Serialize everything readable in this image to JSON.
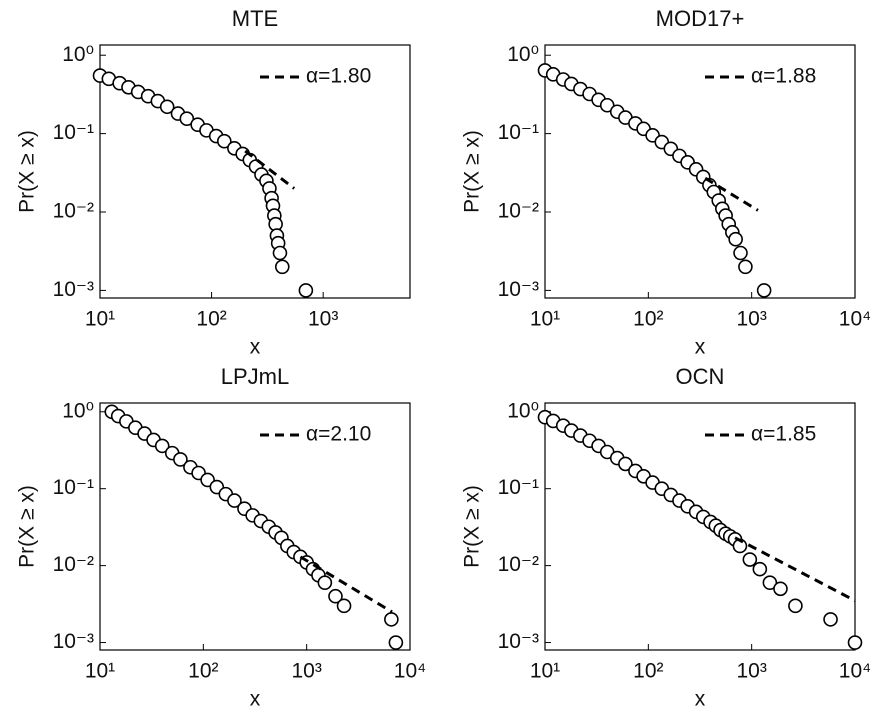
{
  "chart_data": [
    {
      "type": "scatter",
      "title": "MTE",
      "xlabel": "x",
      "ylabel": "Pr(X ≥ x)",
      "xscale": "log",
      "yscale": "log",
      "legend": "upper right",
      "color": "#000000",
      "x": [
        10,
        12,
        15,
        18,
        22,
        27,
        33,
        40,
        50,
        60,
        75,
        90,
        110,
        130,
        160,
        190,
        220,
        250,
        280,
        310,
        330,
        345,
        355,
        365,
        375,
        385,
        395,
        410,
        430,
        700
      ],
      "values": [
        0.55,
        0.5,
        0.44,
        0.39,
        0.34,
        0.3,
        0.26,
        0.22,
        0.18,
        0.155,
        0.13,
        0.11,
        0.093,
        0.08,
        0.065,
        0.055,
        0.046,
        0.038,
        0.03,
        0.025,
        0.02,
        0.015,
        0.012,
        0.009,
        0.007,
        0.005,
        0.004,
        0.003,
        0.002,
        0.001
      ],
      "fit": {
        "name": "α=1.80",
        "x": [
          200,
          550
        ],
        "values": [
          0.06,
          0.02
        ]
      },
      "xlim": [
        10,
        6000
      ],
      "ylim": [
        0.0008,
        1.35
      ],
      "xticks": [
        {
          "value": 10,
          "label": "10¹"
        },
        {
          "value": 100,
          "label": "10²"
        },
        {
          "value": 1000,
          "label": "10³"
        }
      ],
      "yticks": [
        {
          "value": 1,
          "label": "10⁰"
        },
        {
          "value": 0.1,
          "label": "10⁻¹"
        },
        {
          "value": 0.01,
          "label": "10⁻²"
        },
        {
          "value": 0.001,
          "label": "10⁻³"
        }
      ]
    },
    {
      "type": "scatter",
      "title": "MOD17+",
      "xlabel": "x",
      "ylabel": "Pr(X ≥ x)",
      "xscale": "log",
      "yscale": "log",
      "legend": "upper right",
      "color": "#000000",
      "x": [
        10,
        12,
        15,
        18,
        22,
        27,
        33,
        40,
        50,
        60,
        75,
        90,
        110,
        135,
        165,
        200,
        240,
        290,
        340,
        390,
        430,
        480,
        520,
        560,
        600,
        650,
        700,
        780,
        870,
        1320
      ],
      "values": [
        0.64,
        0.57,
        0.49,
        0.43,
        0.37,
        0.32,
        0.27,
        0.23,
        0.19,
        0.16,
        0.135,
        0.115,
        0.095,
        0.078,
        0.064,
        0.052,
        0.043,
        0.035,
        0.028,
        0.022,
        0.018,
        0.014,
        0.011,
        0.009,
        0.007,
        0.0055,
        0.0045,
        0.003,
        0.002,
        0.001
      ],
      "fit": {
        "name": "α=1.88",
        "x": [
          355,
          1150
        ],
        "values": [
          0.027,
          0.0105
        ]
      },
      "xlim": [
        10,
        10000
      ],
      "ylim": [
        0.0008,
        1.35
      ],
      "xticks": [
        {
          "value": 10,
          "label": "10¹"
        },
        {
          "value": 100,
          "label": "10²"
        },
        {
          "value": 1000,
          "label": "10³"
        },
        {
          "value": 10000,
          "label": "10⁴"
        }
      ],
      "yticks": [
        {
          "value": 1,
          "label": "10⁰"
        },
        {
          "value": 0.1,
          "label": "10⁻¹"
        },
        {
          "value": 0.01,
          "label": "10⁻²"
        },
        {
          "value": 0.001,
          "label": "10⁻³"
        }
      ]
    },
    {
      "type": "scatter",
      "title": "LPJmL",
      "xlabel": "x",
      "ylabel": "Pr(X ≥ x)",
      "xscale": "log",
      "yscale": "log",
      "legend": "upper right",
      "color": "#000000",
      "x": [
        13,
        15,
        18,
        22,
        27,
        33,
        40,
        50,
        60,
        75,
        90,
        110,
        135,
        165,
        200,
        250,
        300,
        360,
        430,
        500,
        570,
        650,
        750,
        870,
        1000,
        1150,
        1300,
        1500,
        1900,
        2300,
        6600,
        7300
      ],
      "values": [
        1.0,
        0.88,
        0.75,
        0.62,
        0.52,
        0.43,
        0.36,
        0.29,
        0.24,
        0.19,
        0.16,
        0.13,
        0.105,
        0.085,
        0.07,
        0.055,
        0.045,
        0.038,
        0.032,
        0.027,
        0.023,
        0.018,
        0.015,
        0.013,
        0.011,
        0.009,
        0.0075,
        0.006,
        0.004,
        0.003,
        0.002,
        0.001
      ],
      "fit": {
        "name": "α=2.10",
        "x": [
          870,
          6700
        ],
        "values": [
          0.013,
          0.0025
        ]
      },
      "xlim": [
        10,
        10000
      ],
      "ylim": [
        0.0008,
        1.3
      ],
      "xticks": [
        {
          "value": 10,
          "label": "10¹"
        },
        {
          "value": 100,
          "label": "10²"
        },
        {
          "value": 1000,
          "label": "10³"
        },
        {
          "value": 10000,
          "label": "10⁴"
        }
      ],
      "yticks": [
        {
          "value": 1,
          "label": "10⁰"
        },
        {
          "value": 0.1,
          "label": "10⁻¹"
        },
        {
          "value": 0.01,
          "label": "10⁻²"
        },
        {
          "value": 0.001,
          "label": "10⁻³"
        }
      ]
    },
    {
      "type": "scatter",
      "title": "OCN",
      "xlabel": "x",
      "ylabel": "Pr(X ≥ x)",
      "xscale": "log",
      "yscale": "log",
      "legend": "upper right",
      "color": "#000000",
      "x": [
        10,
        12,
        15,
        18,
        22,
        27,
        33,
        40,
        50,
        60,
        75,
        90,
        110,
        135,
        165,
        200,
        240,
        290,
        340,
        400,
        450,
        500,
        560,
        620,
        690,
        770,
        960,
        1200,
        1500,
        1900,
        2650,
        5800,
        10000
      ],
      "values": [
        0.85,
        0.76,
        0.66,
        0.57,
        0.49,
        0.42,
        0.36,
        0.3,
        0.25,
        0.21,
        0.17,
        0.145,
        0.12,
        0.1,
        0.083,
        0.07,
        0.059,
        0.05,
        0.043,
        0.037,
        0.033,
        0.029,
        0.026,
        0.024,
        0.022,
        0.018,
        0.012,
        0.009,
        0.006,
        0.005,
        0.003,
        0.002,
        0.001
      ],
      "fit": {
        "name": "α=1.85",
        "x": [
          690,
          10000
        ],
        "values": [
          0.023,
          0.0035
        ]
      },
      "xlim": [
        10,
        10000
      ],
      "ylim": [
        0.0008,
        1.3
      ],
      "xticks": [
        {
          "value": 10,
          "label": "10¹"
        },
        {
          "value": 100,
          "label": "10²"
        },
        {
          "value": 1000,
          "label": "10³"
        },
        {
          "value": 10000,
          "label": "10⁴"
        }
      ],
      "yticks": [
        {
          "value": 1,
          "label": "10⁰"
        },
        {
          "value": 0.1,
          "label": "10⁻¹"
        },
        {
          "value": 0.01,
          "label": "10⁻²"
        },
        {
          "value": 0.001,
          "label": "10⁻³"
        }
      ]
    }
  ]
}
